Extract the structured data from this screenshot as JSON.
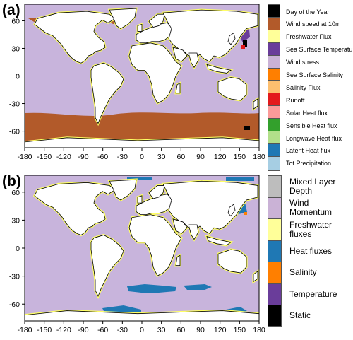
{
  "panels": {
    "a": {
      "label": "(a)",
      "ocean_color": "#c8b4dc",
      "legend": [
        {
          "label": "Day of the Year",
          "color": "#000000"
        },
        {
          "label": "Wind speed at 10m",
          "color": "#b25a2a"
        },
        {
          "label": "Freshwater Flux",
          "color": "#ffff99"
        },
        {
          "label": "Sea Surface Temperature",
          "color": "#6a3d9a"
        },
        {
          "label": "Wind stress",
          "color": "#cab2d6"
        },
        {
          "label": "Sea Surface Salinity",
          "color": "#ff7f00"
        },
        {
          "label": "Salinity Flux",
          "color": "#fdbf6f"
        },
        {
          "label": "Runoff",
          "color": "#e31a1c"
        },
        {
          "label": "Solar Heat flux",
          "color": "#fb9a99"
        },
        {
          "label": "Sensible Heat flux",
          "color": "#33a02c"
        },
        {
          "label": "Longwave Heat flux",
          "color": "#b2df8a"
        },
        {
          "label": "Latent Heat flux",
          "color": "#1f78b4"
        },
        {
          "label": "Tot Precipitation",
          "color": "#a6cee3"
        }
      ]
    },
    "b": {
      "label": "(b)",
      "ocean_color": "#c8b4dc",
      "legend": [
        {
          "label": "Mixed Layer Depth",
          "color": "#bdbdbd"
        },
        {
          "label": "Wind Momentum",
          "color": "#cab2d6"
        },
        {
          "label": "Freshwater fluxes",
          "color": "#ffff99"
        },
        {
          "label": "Heat fluxes",
          "color": "#1f78b4"
        },
        {
          "label": "Salinity",
          "color": "#ff7f00"
        },
        {
          "label": "Temperature",
          "color": "#6a3d9a"
        },
        {
          "label": "Static",
          "color": "#000000"
        }
      ]
    }
  },
  "x_ticks": [
    "-180",
    "-150",
    "-120",
    "-90",
    "-60",
    "-30",
    "0",
    "30",
    "60",
    "90",
    "120",
    "150",
    "180"
  ],
  "y_ticks": [
    "60",
    "30",
    "0",
    "-30",
    "-60"
  ],
  "lon_range": [
    -180,
    180
  ],
  "lat_range": [
    -78,
    78
  ]
}
